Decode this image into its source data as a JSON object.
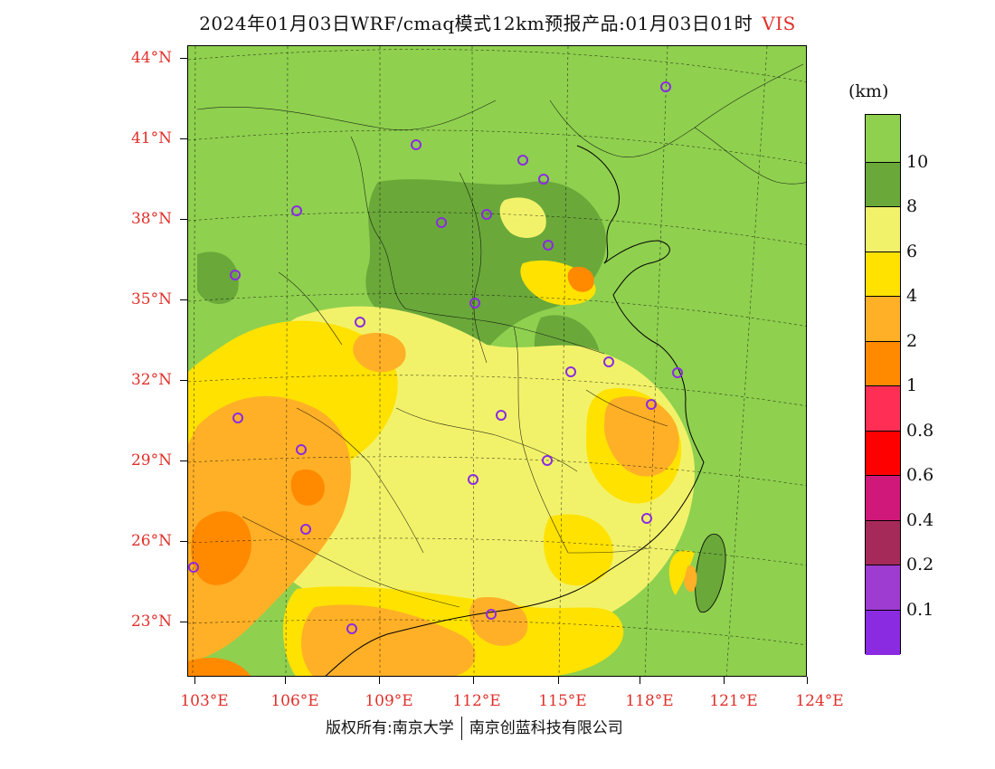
{
  "header": {
    "title": "2024年01月03日WRF/cmaq模式12km预报产品:01月03日01时",
    "variable": "VIS"
  },
  "axes": {
    "lat_labels": [
      "44°N",
      "41°N",
      "38°N",
      "35°N",
      "32°N",
      "29°N",
      "26°N",
      "23°N"
    ],
    "lon_labels": [
      "103°E",
      "106°E",
      "109°E",
      "112°E",
      "115°E",
      "118°E",
      "121°E",
      "124°E"
    ]
  },
  "footer": {
    "credit_left": "版权所有:南京大学",
    "credit_right": "南京创蓝科技有限公司"
  },
  "legend": {
    "unit": "(km)",
    "labels": [
      "10",
      "8",
      "6",
      "4",
      "2",
      "1",
      "0.8",
      "0.6",
      "0.4",
      "0.2",
      "0.1"
    ],
    "colors": [
      "#8fd04f",
      "#6aa83a",
      "#f2f26a",
      "#ffe200",
      "#ffb027",
      "#ff8a00",
      "#ff2e55",
      "#ff0000",
      "#d0187a",
      "#a52a5a",
      "#9e3bd0",
      "#8a2be2"
    ]
  }
}
